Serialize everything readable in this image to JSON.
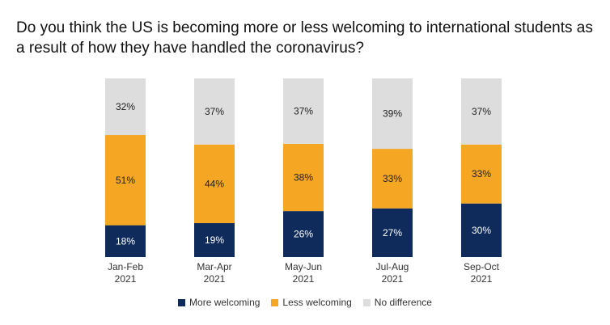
{
  "chart_data": {
    "type": "bar",
    "stacked": true,
    "title": "Do you think the US is becoming more or less welcoming to international students as a result of how they have handled the coronavirus?",
    "categories": [
      [
        "Jan-Feb",
        "2021"
      ],
      [
        "Mar-Apr",
        "2021"
      ],
      [
        "May-Jun",
        "2021"
      ],
      [
        "Jul-Aug",
        "2021"
      ],
      [
        "Sep-Oct",
        "2021"
      ]
    ],
    "series": [
      {
        "name": "More welcoming",
        "color": "#0f2b5b",
        "values": [
          18,
          19,
          26,
          27,
          30
        ]
      },
      {
        "name": "Less welcoming",
        "color": "#f5a623",
        "values": [
          51,
          44,
          38,
          33,
          33
        ]
      },
      {
        "name": "No difference",
        "color": "#dddddd",
        "values": [
          32,
          37,
          37,
          39,
          37
        ]
      }
    ],
    "value_suffix": "%",
    "ylim": [
      0,
      100
    ],
    "grid": false,
    "legend_position": "bottom"
  }
}
